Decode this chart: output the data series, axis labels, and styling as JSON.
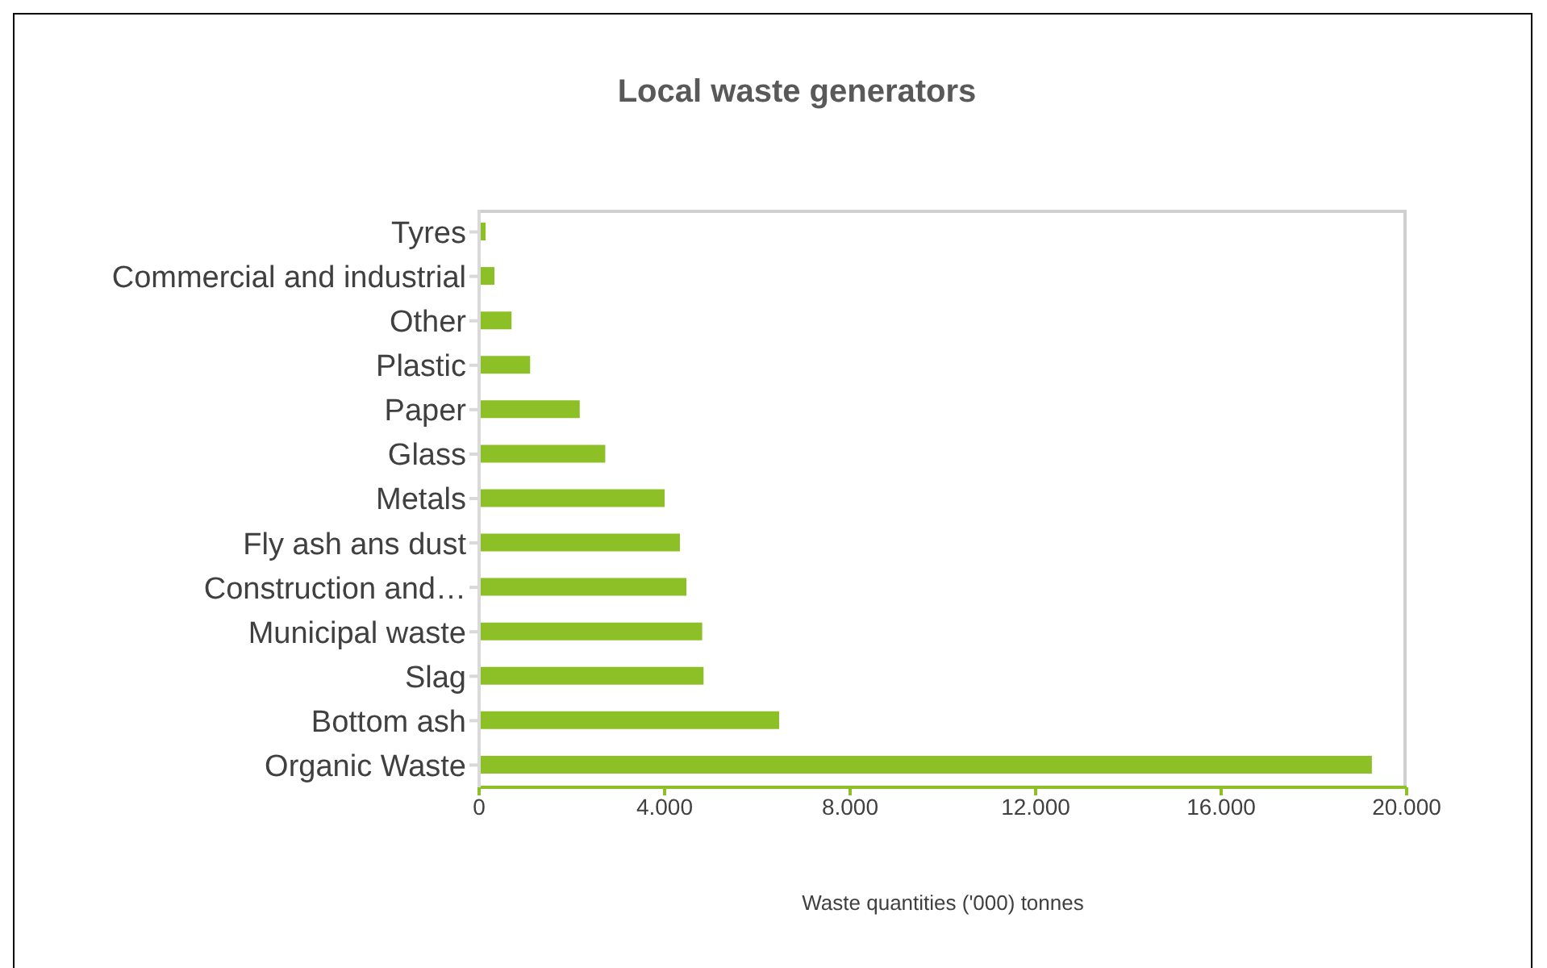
{
  "chart_data": {
    "type": "bar",
    "orientation": "horizontal",
    "title": "Local waste generators",
    "xlabel": "Waste quantities ('000) tonnes",
    "categories": [
      "Tyres",
      "Commercial and industrial",
      "Other",
      "Plastic",
      "Paper",
      "Glass",
      "Metals",
      "Fly ash ans dust",
      "Construction and…",
      "Municipal waste",
      "Slag",
      "Bottom ash",
      "Organic Waste"
    ],
    "values": [
      140,
      330,
      700,
      1100,
      2170,
      2720,
      4000,
      4330,
      4470,
      4810,
      4840,
      6470,
      19250
    ],
    "color": "#8dc026",
    "xlim": [
      0,
      20000
    ],
    "xticks": [
      0,
      {
        "value": 4000,
        "label": "4.000"
      },
      {
        "value": 8000,
        "label": "8.000"
      },
      {
        "value": 12000,
        "label": "12.000"
      },
      {
        "value": 16000,
        "label": "16.000"
      },
      {
        "value": 20000,
        "label": "20.000"
      }
    ],
    "grid": false,
    "legend": false
  }
}
